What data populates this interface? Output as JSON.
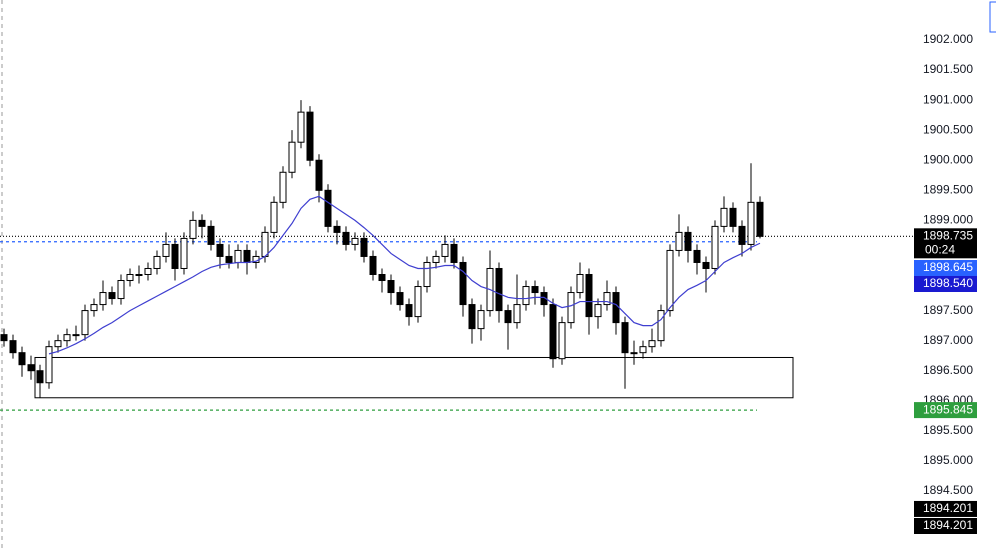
{
  "chart_data": {
    "type": "candlestick",
    "categories": [
      null,
      null,
      null,
      null,
      null,
      null,
      null,
      null,
      null,
      null,
      null,
      null,
      null,
      null,
      null,
      null,
      null,
      null,
      null,
      null,
      null,
      null,
      null,
      null,
      null,
      null,
      null,
      null,
      null,
      null,
      null,
      null,
      null,
      null,
      null,
      null,
      null,
      null,
      null,
      null,
      null,
      null,
      null,
      null,
      null,
      null,
      null,
      null,
      null,
      null,
      null,
      null,
      null,
      null,
      null,
      null,
      null,
      null,
      null,
      null,
      null,
      null,
      null,
      null,
      null,
      null,
      null,
      null,
      null,
      null,
      null,
      null,
      null,
      null,
      null,
      null,
      null,
      null,
      null,
      null,
      null,
      null,
      null,
      null,
      null
    ],
    "open": [
      1897.1,
      1897.0,
      1896.8,
      1896.6,
      1896.5,
      1896.3,
      1896.9,
      1897.0,
      1897.1,
      1897.1,
      1897.5,
      1897.6,
      1897.8,
      1897.7,
      1898.0,
      1898.1,
      1898.1,
      1898.2,
      1898.4,
      1898.6,
      1898.2,
      1898.7,
      1899.0,
      1898.9,
      1898.6,
      1898.4,
      1898.3,
      1898.5,
      1898.3,
      1898.4,
      1898.8,
      1899.3,
      1899.8,
      1900.3,
      1900.8,
      1900.0,
      1899.5,
      1898.9,
      1898.8,
      1898.6,
      1898.7,
      1898.4,
      1898.1,
      1898.0,
      1897.8,
      1897.6,
      1897.4,
      1897.9,
      1898.3,
      1898.4,
      1898.6,
      1898.3,
      1897.6,
      1897.2,
      1897.5,
      1898.2,
      1897.5,
      1897.3,
      1897.6,
      1897.9,
      1897.8,
      1897.6,
      1896.7,
      1897.3,
      1897.8,
      1898.1,
      1897.4,
      1897.6,
      1897.8,
      1897.3,
      1896.8,
      1896.8,
      1896.9,
      1897.0,
      1897.5,
      1898.5,
      1898.8,
      1898.5,
      1898.3,
      1898.2,
      1898.9,
      1899.2,
      1898.9,
      1898.6,
      1899.3
    ],
    "high": [
      1897.2,
      1897.1,
      1896.9,
      1896.75,
      1896.6,
      1897.0,
      1897.1,
      1897.2,
      1897.25,
      1897.6,
      1897.7,
      1898.0,
      1897.9,
      1898.1,
      1898.2,
      1898.25,
      1898.3,
      1898.5,
      1898.8,
      1898.7,
      1898.8,
      1899.15,
      1899.1,
      1899.0,
      1898.7,
      1898.6,
      1898.6,
      1898.6,
      1898.5,
      1898.9,
      1899.4,
      1899.9,
      1900.5,
      1901.0,
      1900.9,
      1900.1,
      1899.6,
      1899.0,
      1898.9,
      1898.8,
      1898.8,
      1898.5,
      1898.2,
      1898.1,
      1897.9,
      1897.7,
      1898.0,
      1898.4,
      1898.5,
      1898.75,
      1898.7,
      1898.4,
      1897.7,
      1897.6,
      1898.5,
      1898.3,
      1897.6,
      1898.1,
      1898.0,
      1898.0,
      1897.9,
      1897.7,
      1897.4,
      1897.9,
      1898.3,
      1898.2,
      1897.7,
      1898.0,
      1897.9,
      1897.4,
      1897.0,
      1897.0,
      1897.2,
      1897.6,
      1898.6,
      1899.1,
      1898.9,
      1898.6,
      1898.4,
      1899.0,
      1899.4,
      1899.3,
      1899.0,
      1899.95,
      1899.4
    ],
    "low": [
      1896.9,
      1896.7,
      1896.4,
      1896.35,
      1896.05,
      1896.2,
      1896.8,
      1896.9,
      1897.0,
      1897.0,
      1897.4,
      1897.5,
      1897.6,
      1897.6,
      1897.9,
      1897.95,
      1898.0,
      1898.1,
      1898.3,
      1898.0,
      1898.1,
      1898.6,
      1898.7,
      1898.5,
      1898.2,
      1898.2,
      1898.2,
      1898.1,
      1898.2,
      1898.3,
      1898.7,
      1899.2,
      1899.7,
      1900.2,
      1899.9,
      1899.3,
      1898.8,
      1898.6,
      1898.5,
      1898.5,
      1898.3,
      1898.0,
      1897.8,
      1897.6,
      1897.5,
      1897.25,
      1897.3,
      1897.8,
      1898.2,
      1898.3,
      1898.2,
      1897.4,
      1896.95,
      1897.0,
      1897.4,
      1897.3,
      1896.85,
      1897.2,
      1897.5,
      1897.6,
      1897.4,
      1896.55,
      1896.6,
      1897.2,
      1897.7,
      1897.1,
      1897.2,
      1897.5,
      1897.1,
      1896.2,
      1896.6,
      1896.7,
      1896.8,
      1896.9,
      1897.4,
      1898.4,
      1898.3,
      1898.1,
      1897.8,
      1898.1,
      1898.8,
      1898.8,
      1898.4,
      1898.5,
      1898.7
    ],
    "close": [
      1897.0,
      1896.8,
      1896.6,
      1896.5,
      1896.3,
      1896.9,
      1897.0,
      1897.1,
      1897.1,
      1897.5,
      1897.6,
      1897.8,
      1897.7,
      1898.0,
      1898.1,
      1898.1,
      1898.2,
      1898.4,
      1898.6,
      1898.2,
      1898.7,
      1899.0,
      1898.9,
      1898.6,
      1898.4,
      1898.3,
      1898.5,
      1898.3,
      1898.4,
      1898.8,
      1899.3,
      1899.8,
      1900.3,
      1900.8,
      1900.0,
      1899.5,
      1898.9,
      1898.8,
      1898.6,
      1898.7,
      1898.4,
      1898.1,
      1898.0,
      1897.8,
      1897.6,
      1897.4,
      1897.9,
      1898.3,
      1898.4,
      1898.6,
      1898.3,
      1897.6,
      1897.2,
      1897.5,
      1898.2,
      1897.5,
      1897.3,
      1897.6,
      1897.9,
      1897.8,
      1897.6,
      1896.7,
      1897.3,
      1897.8,
      1898.1,
      1897.4,
      1897.6,
      1897.8,
      1897.3,
      1896.8,
      1896.8,
      1896.9,
      1897.0,
      1897.5,
      1898.5,
      1898.8,
      1898.5,
      1898.3,
      1898.2,
      1898.9,
      1899.2,
      1898.9,
      1898.6,
      1899.3,
      1898.735
    ],
    "up_color": "#ffffff",
    "down_color": "#000000",
    "ma": {
      "color": "#3f3fd0",
      "values": [
        null,
        null,
        null,
        null,
        null,
        1896.78,
        1896.82,
        1896.88,
        1896.95,
        1897.03,
        1897.12,
        1897.22,
        1897.3,
        1897.4,
        1897.5,
        1897.58,
        1897.66,
        1897.74,
        1897.82,
        1897.9,
        1897.98,
        1898.06,
        1898.15,
        1898.22,
        1898.26,
        1898.28,
        1898.3,
        1898.3,
        1898.32,
        1898.4,
        1898.55,
        1898.75,
        1898.95,
        1899.2,
        1899.35,
        1899.4,
        1899.3,
        1899.2,
        1899.1,
        1899.0,
        1898.88,
        1898.75,
        1898.6,
        1898.45,
        1898.35,
        1898.25,
        1898.2,
        1898.2,
        1898.22,
        1898.25,
        1898.25,
        1898.15,
        1898.0,
        1897.9,
        1897.85,
        1897.78,
        1897.72,
        1897.7,
        1897.7,
        1897.72,
        1897.72,
        1897.62,
        1897.55,
        1897.58,
        1897.65,
        1897.65,
        1897.65,
        1897.65,
        1897.6,
        1897.45,
        1897.3,
        1897.25,
        1897.25,
        1897.35,
        1897.55,
        1897.72,
        1897.85,
        1897.92,
        1898.0,
        1898.15,
        1898.3,
        1898.38,
        1898.45,
        1898.55,
        1898.62
      ]
    },
    "zone": {
      "top": 1896.72,
      "bottom": 1896.05
    },
    "ylim": [
      1893.535,
      1902.665
    ],
    "yticks": [
      {
        "value": 1894.5,
        "label": "1894.500"
      },
      {
        "value": 1895.0,
        "label": "1895.000"
      },
      {
        "value": 1895.5,
        "label": "1895.500"
      },
      {
        "value": 1896.0,
        "label": "1896.000"
      },
      {
        "value": 1896.5,
        "label": "1896.500"
      },
      {
        "value": 1897.0,
        "label": "1897.000"
      },
      {
        "value": 1897.5,
        "label": "1897.500"
      },
      {
        "value": 1898.0,
        "label": "1898.000"
      },
      {
        "value": 1898.5,
        "label": "1898.500"
      },
      {
        "value": 1899.0,
        "label": "1899.000"
      },
      {
        "value": 1899.5,
        "label": "1899.500"
      },
      {
        "value": 1900.0,
        "label": "1900.000"
      },
      {
        "value": 1900.5,
        "label": "1900.500"
      },
      {
        "value": 1901.0,
        "label": "1901.000"
      },
      {
        "value": 1901.5,
        "label": "1901.500"
      },
      {
        "value": 1902.0,
        "label": "1902.000"
      }
    ],
    "price_labels": [
      {
        "value": 1898.735,
        "label": "1898.735",
        "color": "#000000"
      },
      {
        "value": 1898.645,
        "label": "1898.645",
        "color": "#2962ff"
      },
      {
        "value": 1898.54,
        "label": "1898.540",
        "color": "#1a1ad0"
      },
      {
        "value": 1895.845,
        "label": "1895.845",
        "color": "#2e9e3e"
      },
      {
        "value": 1894.201,
        "label": "1894.201",
        "color": "#000000"
      },
      {
        "value": 1894.201,
        "label": "1894.201",
        "color": "#000000"
      }
    ],
    "countdown": "00:24"
  }
}
